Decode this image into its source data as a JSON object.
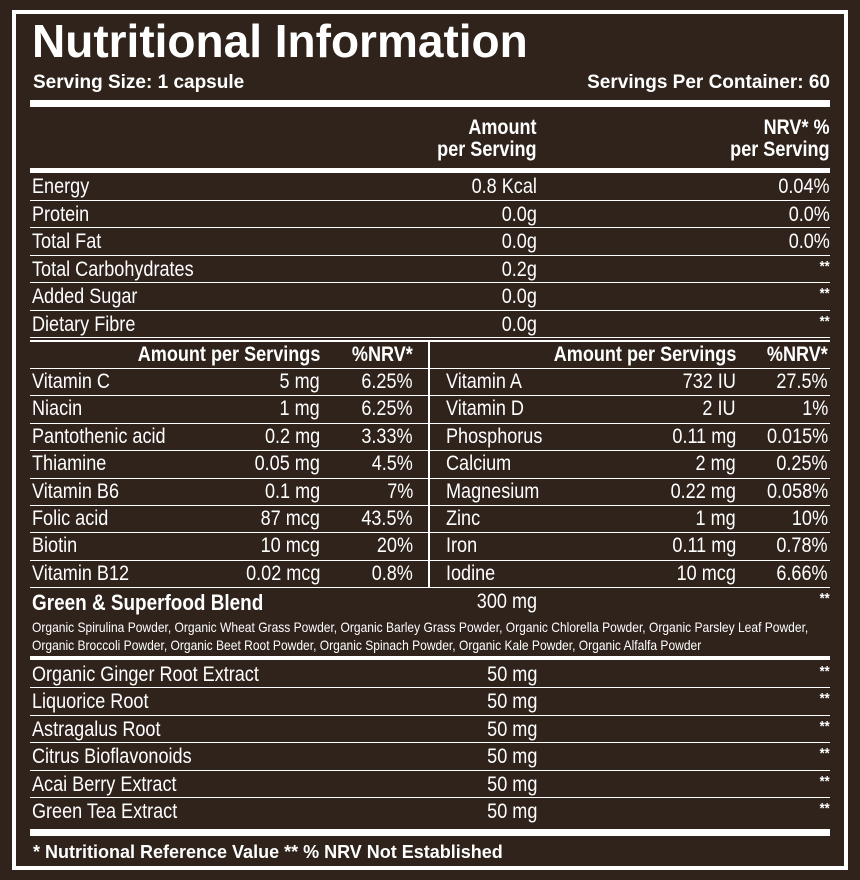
{
  "title": "Nutritional Information",
  "serving_size": "Serving Size: 1 capsule",
  "servings_per_container": "Servings Per Container: 60",
  "header": {
    "amount_line1": "Amount",
    "amount_line2": "per Serving",
    "nrv_line1": "NRV* %",
    "nrv_line2": "per Serving"
  },
  "macros": [
    {
      "name": "Energy",
      "amount": "0.8 Kcal",
      "nrv": "0.04%"
    },
    {
      "name": "Protein",
      "amount": "0.0g",
      "nrv": "0.0%"
    },
    {
      "name": "Total Fat",
      "amount": "0.0g",
      "nrv": "0.0%"
    },
    {
      "name": "Total Carbohydrates",
      "amount": "0.2g",
      "nrv": "**"
    },
    {
      "name": "Added Sugar",
      "amount": "0.0g",
      "nrv": "**"
    },
    {
      "name": "Dietary Fibre",
      "amount": "0.0g",
      "nrv": "**"
    }
  ],
  "micro_header": {
    "amount": "Amount per Servings",
    "nrv": "%NRV*"
  },
  "micros_left": [
    {
      "name": "Vitamin C",
      "amount": "5 mg",
      "nrv": "6.25%"
    },
    {
      "name": "Niacin",
      "amount": "1 mg",
      "nrv": "6.25%"
    },
    {
      "name": "Pantothenic acid",
      "amount": "0.2 mg",
      "nrv": "3.33%"
    },
    {
      "name": "Thiamine",
      "amount": "0.05 mg",
      "nrv": "4.5%"
    },
    {
      "name": "Vitamin B6",
      "amount": "0.1 mg",
      "nrv": "7%"
    },
    {
      "name": "Folic acid",
      "amount": "87 mcg",
      "nrv": "43.5%"
    },
    {
      "name": "Biotin",
      "amount": "10 mcg",
      "nrv": "20%"
    },
    {
      "name": "Vitamin B12",
      "amount": "0.02 mcg",
      "nrv": "0.8%"
    }
  ],
  "micros_right": [
    {
      "name": "Vitamin A",
      "amount": "732 IU",
      "nrv": "27.5%"
    },
    {
      "name": "Vitamin D",
      "amount": "2 IU",
      "nrv": "1%"
    },
    {
      "name": "Phosphorus",
      "amount": "0.11 mg",
      "nrv": "0.015%"
    },
    {
      "name": "Calcium",
      "amount": "2 mg",
      "nrv": "0.25%"
    },
    {
      "name": "Magnesium",
      "amount": "0.22 mg",
      "nrv": "0.058%"
    },
    {
      "name": "Zinc",
      "amount": "1 mg",
      "nrv": "10%"
    },
    {
      "name": "Iron",
      "amount": "0.11 mg",
      "nrv": "0.78%"
    },
    {
      "name": "Iodine",
      "amount": "10 mcg",
      "nrv": "6.66%"
    }
  ],
  "blend": {
    "name": "Green & Superfood Blend",
    "amount": "300 mg",
    "nrv": "**",
    "ingredients_line1": "Organic Spirulina Powder, Organic Wheat Grass Powder, Organic Barley Grass Powder, Organic Chlorella Powder, Organic Parsley Leaf Powder,",
    "ingredients_line2": "Organic Broccoli Powder, Organic Beet Root Powder, Organic Spinach Powder, Organic Kale Powder, Organic Alfalfa Powder"
  },
  "extracts": [
    {
      "name": "Organic Ginger Root Extract",
      "amount": "50 mg",
      "nrv": "**"
    },
    {
      "name": "Liquorice Root",
      "amount": "50 mg",
      "nrv": "**"
    },
    {
      "name": "Astragalus Root",
      "amount": "50 mg",
      "nrv": "**"
    },
    {
      "name": "Citrus Bioflavonoids",
      "amount": "50 mg",
      "nrv": "**"
    },
    {
      "name": "Acai Berry Extract",
      "amount": "50 mg",
      "nrv": "**"
    },
    {
      "name": "Green Tea Extract",
      "amount": "50 mg",
      "nrv": "**"
    }
  ],
  "footnote": "* Nutritional Reference Value ** % NRV Not Established",
  "colors": {
    "background": "#2f231c",
    "text": "#ffffff"
  }
}
